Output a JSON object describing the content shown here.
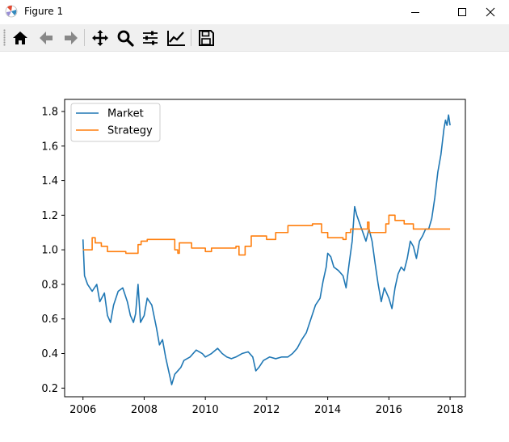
{
  "window": {
    "title": "Figure 1",
    "icon": "matplotlib-icon"
  },
  "window_controls": [
    "minimize-icon",
    "maximize-icon",
    "close-icon"
  ],
  "toolbar": {
    "buttons": [
      "home-icon",
      "back-arrow-icon",
      "forward-arrow-icon",
      "pan-icon",
      "zoom-icon",
      "subplots-config-icon",
      "edit-axis-icon",
      "save-icon"
    ]
  },
  "chart_data": {
    "type": "line",
    "title": "",
    "xlabel": "",
    "ylabel": "",
    "xlim": [
      2005.4,
      2018.5
    ],
    "ylim": [
      0.15,
      1.87
    ],
    "x_ticks": [
      2006,
      2008,
      2010,
      2012,
      2014,
      2016,
      2018
    ],
    "x_tick_labels": [
      "2006",
      "2008",
      "2010",
      "2012",
      "2014",
      "2016",
      "2018"
    ],
    "y_ticks": [
      0.2,
      0.4,
      0.6,
      0.8,
      1.0,
      1.2,
      1.4,
      1.6,
      1.8
    ],
    "y_tick_labels": [
      "0.2",
      "0.4",
      "0.6",
      "0.8",
      "1.0",
      "1.2",
      "1.4",
      "1.6",
      "1.8"
    ],
    "grid": false,
    "legend": {
      "placement": "top-left"
    },
    "series": [
      {
        "name": "Market",
        "color": "#1f77b4",
        "points": [
          [
            2006.0,
            1.06
          ],
          [
            2006.05,
            0.85
          ],
          [
            2006.15,
            0.8
          ],
          [
            2006.3,
            0.76
          ],
          [
            2006.45,
            0.8
          ],
          [
            2006.55,
            0.7
          ],
          [
            2006.7,
            0.75
          ],
          [
            2006.8,
            0.62
          ],
          [
            2006.9,
            0.58
          ],
          [
            2007.0,
            0.68
          ],
          [
            2007.15,
            0.76
          ],
          [
            2007.3,
            0.78
          ],
          [
            2007.45,
            0.7
          ],
          [
            2007.55,
            0.62
          ],
          [
            2007.65,
            0.58
          ],
          [
            2007.72,
            0.63
          ],
          [
            2007.8,
            0.8
          ],
          [
            2007.88,
            0.58
          ],
          [
            2008.0,
            0.62
          ],
          [
            2008.1,
            0.72
          ],
          [
            2008.25,
            0.68
          ],
          [
            2008.4,
            0.55
          ],
          [
            2008.5,
            0.45
          ],
          [
            2008.6,
            0.48
          ],
          [
            2008.7,
            0.38
          ],
          [
            2008.8,
            0.3
          ],
          [
            2008.9,
            0.22
          ],
          [
            2009.0,
            0.28
          ],
          [
            2009.1,
            0.3
          ],
          [
            2009.2,
            0.32
          ],
          [
            2009.3,
            0.36
          ],
          [
            2009.5,
            0.38
          ],
          [
            2009.7,
            0.42
          ],
          [
            2009.9,
            0.4
          ],
          [
            2010.0,
            0.38
          ],
          [
            2010.2,
            0.4
          ],
          [
            2010.4,
            0.43
          ],
          [
            2010.55,
            0.4
          ],
          [
            2010.7,
            0.38
          ],
          [
            2010.85,
            0.37
          ],
          [
            2011.0,
            0.38
          ],
          [
            2011.2,
            0.4
          ],
          [
            2011.4,
            0.41
          ],
          [
            2011.55,
            0.38
          ],
          [
            2011.65,
            0.3
          ],
          [
            2011.75,
            0.32
          ],
          [
            2011.9,
            0.36
          ],
          [
            2012.1,
            0.38
          ],
          [
            2012.3,
            0.37
          ],
          [
            2012.5,
            0.38
          ],
          [
            2012.7,
            0.38
          ],
          [
            2012.85,
            0.4
          ],
          [
            2013.0,
            0.43
          ],
          [
            2013.15,
            0.48
          ],
          [
            2013.3,
            0.52
          ],
          [
            2013.45,
            0.6
          ],
          [
            2013.6,
            0.68
          ],
          [
            2013.75,
            0.72
          ],
          [
            2013.85,
            0.82
          ],
          [
            2013.95,
            0.9
          ],
          [
            2014.0,
            0.98
          ],
          [
            2014.1,
            0.96
          ],
          [
            2014.2,
            0.9
          ],
          [
            2014.35,
            0.88
          ],
          [
            2014.5,
            0.85
          ],
          [
            2014.6,
            0.78
          ],
          [
            2014.7,
            0.92
          ],
          [
            2014.8,
            1.05
          ],
          [
            2014.88,
            1.25
          ],
          [
            2014.95,
            1.2
          ],
          [
            2015.05,
            1.15
          ],
          [
            2015.15,
            1.1
          ],
          [
            2015.25,
            1.05
          ],
          [
            2015.35,
            1.12
          ],
          [
            2015.45,
            1.05
          ],
          [
            2015.55,
            0.92
          ],
          [
            2015.65,
            0.8
          ],
          [
            2015.75,
            0.7
          ],
          [
            2015.85,
            0.78
          ],
          [
            2016.0,
            0.72
          ],
          [
            2016.1,
            0.66
          ],
          [
            2016.2,
            0.78
          ],
          [
            2016.3,
            0.86
          ],
          [
            2016.4,
            0.9
          ],
          [
            2016.5,
            0.88
          ],
          [
            2016.6,
            0.95
          ],
          [
            2016.7,
            1.05
          ],
          [
            2016.8,
            1.02
          ],
          [
            2016.9,
            0.95
          ],
          [
            2017.0,
            1.05
          ],
          [
            2017.1,
            1.08
          ],
          [
            2017.2,
            1.12
          ],
          [
            2017.3,
            1.12
          ],
          [
            2017.4,
            1.18
          ],
          [
            2017.5,
            1.3
          ],
          [
            2017.6,
            1.45
          ],
          [
            2017.7,
            1.55
          ],
          [
            2017.8,
            1.7
          ],
          [
            2017.85,
            1.75
          ],
          [
            2017.9,
            1.72
          ],
          [
            2017.95,
            1.78
          ],
          [
            2018.0,
            1.72
          ]
        ]
      },
      {
        "name": "Strategy",
        "color": "#ff7f0e",
        "points": [
          [
            2006.0,
            1.0
          ],
          [
            2006.3,
            1.0
          ],
          [
            2006.3,
            1.07
          ],
          [
            2006.4,
            1.07
          ],
          [
            2006.4,
            1.04
          ],
          [
            2006.6,
            1.04
          ],
          [
            2006.6,
            1.02
          ],
          [
            2006.8,
            1.02
          ],
          [
            2006.8,
            0.99
          ],
          [
            2007.4,
            0.99
          ],
          [
            2007.4,
            0.98
          ],
          [
            2007.8,
            0.98
          ],
          [
            2007.8,
            1.03
          ],
          [
            2007.9,
            1.03
          ],
          [
            2007.9,
            1.05
          ],
          [
            2008.1,
            1.05
          ],
          [
            2008.1,
            1.06
          ],
          [
            2009.0,
            1.06
          ],
          [
            2009.0,
            1.0
          ],
          [
            2009.1,
            1.0
          ],
          [
            2009.1,
            0.98
          ],
          [
            2009.15,
            0.98
          ],
          [
            2009.15,
            1.04
          ],
          [
            2009.55,
            1.04
          ],
          [
            2009.55,
            1.01
          ],
          [
            2010.0,
            1.01
          ],
          [
            2010.0,
            0.99
          ],
          [
            2010.2,
            0.99
          ],
          [
            2010.2,
            1.01
          ],
          [
            2011.0,
            1.01
          ],
          [
            2011.0,
            1.02
          ],
          [
            2011.1,
            1.02
          ],
          [
            2011.1,
            0.97
          ],
          [
            2011.3,
            0.97
          ],
          [
            2011.3,
            1.02
          ],
          [
            2011.5,
            1.02
          ],
          [
            2011.5,
            1.08
          ],
          [
            2012.0,
            1.08
          ],
          [
            2012.0,
            1.06
          ],
          [
            2012.3,
            1.06
          ],
          [
            2012.3,
            1.1
          ],
          [
            2012.5,
            1.1
          ],
          [
            2012.5,
            1.1
          ],
          [
            2012.7,
            1.1
          ],
          [
            2012.7,
            1.14
          ],
          [
            2013.5,
            1.14
          ],
          [
            2013.5,
            1.15
          ],
          [
            2013.8,
            1.15
          ],
          [
            2013.8,
            1.1
          ],
          [
            2014.0,
            1.1
          ],
          [
            2014.0,
            1.07
          ],
          [
            2014.5,
            1.07
          ],
          [
            2014.5,
            1.06
          ],
          [
            2014.6,
            1.06
          ],
          [
            2014.6,
            1.1
          ],
          [
            2014.75,
            1.1
          ],
          [
            2014.75,
            1.12
          ],
          [
            2015.3,
            1.12
          ],
          [
            2015.3,
            1.16
          ],
          [
            2015.35,
            1.16
          ],
          [
            2015.35,
            1.1
          ],
          [
            2015.9,
            1.1
          ],
          [
            2015.9,
            1.15
          ],
          [
            2016.0,
            1.15
          ],
          [
            2016.0,
            1.2
          ],
          [
            2016.2,
            1.2
          ],
          [
            2016.2,
            1.17
          ],
          [
            2016.5,
            1.17
          ],
          [
            2016.5,
            1.15
          ],
          [
            2016.8,
            1.15
          ],
          [
            2016.8,
            1.12
          ],
          [
            2018.0,
            1.12
          ]
        ]
      }
    ]
  }
}
